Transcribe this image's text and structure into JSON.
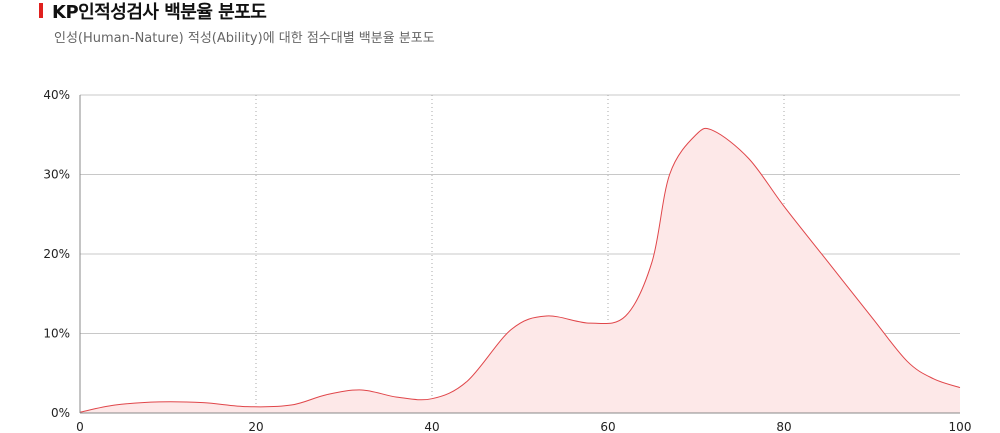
{
  "header": {
    "title": "KP인적성검사 백분율 분포도",
    "subtitle": "인성(Human-Nature) 적성(Ability)에 대한 점수대별 백분율 분포도"
  },
  "colors": {
    "accent": "#e0201e",
    "line": "#e0464a",
    "fill": "#fde8e8",
    "grid": "#c8c8c8"
  },
  "chart_data": {
    "type": "area",
    "title": "KP인적성검사 백분율 분포도",
    "subtitle": "인성(Human-Nature) 적성(Ability)에 대한 점수대별 백분율 분포도",
    "xlabel": "",
    "ylabel": "",
    "xlim": [
      0,
      100
    ],
    "ylim": [
      0,
      40
    ],
    "x_ticks": [
      "0",
      "20",
      "40",
      "60",
      "80",
      "100"
    ],
    "y_ticks": [
      "0%",
      "10%",
      "20%",
      "30%",
      "40%"
    ],
    "x": [
      0,
      4,
      9,
      14,
      19,
      24,
      28,
      32,
      36,
      40,
      44,
      49,
      53,
      58,
      62,
      65,
      67,
      70,
      72,
      76,
      80,
      85,
      90,
      94,
      97,
      100
    ],
    "values": [
      0.1,
      1.0,
      1.4,
      1.3,
      0.8,
      1.0,
      2.3,
      2.9,
      2.0,
      1.8,
      4.0,
      10.5,
      12.2,
      11.3,
      12.2,
      19.0,
      30.0,
      35.0,
      35.5,
      32.0,
      26.0,
      19.0,
      12.0,
      6.5,
      4.3,
      3.2
    ],
    "grid": {
      "horizontal": "solid",
      "vertical": "dotted"
    }
  }
}
